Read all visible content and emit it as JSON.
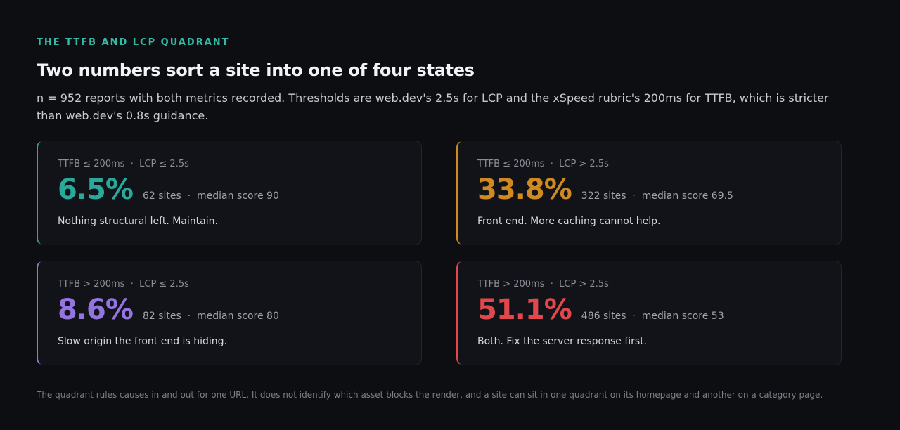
{
  "header": {
    "eyebrow": "THE TTFB AND LCP QUADRANT",
    "title": "Two numbers sort a site into one of four states",
    "description": "n = 952 reports with both metrics recorded. Thresholds are web.dev's 2.5s for LCP and the xSpeed rubric's 200ms for TTFB, which is stricter than web.dev's 0.8s guidance."
  },
  "quadrants": [
    {
      "condition": "TTFB ≤ 200ms  ·  LCP ≤ 2.5s",
      "share": "6.5%",
      "stats": "62 sites  ·  median score 90",
      "note": "Nothing structural left. Maintain."
    },
    {
      "condition": "TTFB ≤ 200ms  ·  LCP > 2.5s",
      "share": "33.8%",
      "stats": "322 sites  ·  median score 69.5",
      "note": "Front end. More caching cannot help."
    },
    {
      "condition": "TTFB > 200ms  ·  LCP ≤ 2.5s",
      "share": "8.6%",
      "stats": "82 sites  ·  median score 80",
      "note": "Slow origin the front end is hiding."
    },
    {
      "condition": "TTFB > 200ms  ·  LCP > 2.5s",
      "share": "51.1%",
      "stats": "486 sites  ·  median score 53",
      "note": "Both. Fix the server response first."
    }
  ],
  "footer": "The quadrant rules causes in and out for one URL. It does not identify which asset blocks the render, and a site can sit in one quadrant on its homepage and another on a category page."
}
